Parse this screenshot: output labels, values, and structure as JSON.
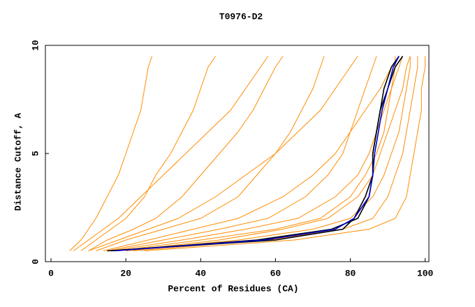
{
  "chart_data": {
    "type": "line",
    "title": "T0976-D2",
    "x_label": "Percent of Residues (CA)",
    "y_label": "Distance Cutoff, A",
    "xlim": [
      -1.5,
      101
    ],
    "ylim": [
      0,
      10
    ],
    "xticks": [
      0,
      20,
      40,
      60,
      80,
      100
    ],
    "yticks": [
      0,
      5,
      10
    ],
    "series": [
      {
        "color": "#ff8c00",
        "x": [
          5,
          8,
          10,
          12,
          15,
          18,
          20,
          22,
          24,
          25,
          26,
          27
        ],
        "values": [
          0.5,
          1,
          1.5,
          2,
          3,
          4,
          5,
          6,
          7,
          8,
          9,
          9.5
        ]
      },
      {
        "color": "#ff8c00",
        "x": [
          8,
          12,
          16,
          20,
          25,
          28,
          32,
          35,
          38,
          40,
          42,
          44
        ],
        "values": [
          0.5,
          1,
          1.5,
          2,
          3,
          4,
          5,
          6,
          7,
          8,
          9,
          9.5
        ]
      },
      {
        "color": "#ff8c00",
        "x": [
          10,
          15,
          22,
          28,
          35,
          40,
          45,
          50,
          54,
          57,
          60,
          62
        ],
        "values": [
          0.5,
          1,
          1.5,
          2,
          3,
          4,
          5,
          6,
          7,
          8,
          9,
          9.5
        ]
      },
      {
        "color": "#ff8c00",
        "x": [
          12,
          20,
          30,
          40,
          50,
          55,
          60,
          64,
          67,
          70,
          72,
          73
        ],
        "values": [
          0.5,
          1,
          1.5,
          2,
          3,
          4,
          5,
          6,
          7,
          8,
          9,
          9.5
        ]
      },
      {
        "color": "#ff8c00",
        "x": [
          15,
          30,
          45,
          58,
          68,
          74,
          78,
          80,
          82,
          84,
          86,
          87
        ],
        "values": [
          0.5,
          1,
          1.5,
          2,
          3,
          4,
          5,
          6,
          7,
          8,
          9,
          9.5
        ]
      },
      {
        "color": "#ff8c00",
        "x": [
          18,
          40,
          60,
          72,
          80,
          84,
          87,
          89,
          90,
          91,
          92,
          92
        ],
        "values": [
          0.5,
          1,
          1.5,
          2,
          3,
          4,
          5,
          6,
          7,
          8,
          9,
          9.5
        ]
      },
      {
        "color": "#ff8c00",
        "x": [
          20,
          50,
          70,
          80,
          86,
          89,
          91,
          93,
          94,
          95,
          96,
          96
        ],
        "values": [
          0.5,
          1,
          1.5,
          2,
          3,
          4,
          5,
          6,
          7,
          8,
          9,
          9.5
        ]
      },
      {
        "color": "#ff8c00",
        "x": [
          22,
          58,
          78,
          86,
          90,
          92,
          94,
          95,
          96,
          97,
          98,
          98
        ],
        "values": [
          0.5,
          1,
          1.5,
          2,
          3,
          4,
          5,
          6,
          7,
          8,
          9,
          9.5
        ]
      },
      {
        "color": "#ff8c00",
        "x": [
          25,
          65,
          85,
          92,
          95,
          96,
          97,
          98,
          99,
          99,
          100,
          100
        ],
        "values": [
          0.5,
          1,
          1.5,
          2,
          3,
          4,
          5,
          6,
          7,
          8,
          9,
          9.5
        ]
      },
      {
        "color": "#ff8c00",
        "x": [
          14,
          26,
          38,
          50,
          62,
          70,
          76,
          80,
          84,
          88,
          91,
          93
        ],
        "values": [
          0.5,
          1,
          1.5,
          2,
          3,
          4,
          5,
          6,
          7,
          8,
          9,
          9.5
        ]
      },
      {
        "color": "#ff8c00",
        "x": [
          10,
          18,
          26,
          34,
          44,
          52,
          60,
          66,
          72,
          76,
          80,
          82
        ],
        "values": [
          0.5,
          1,
          1.5,
          2,
          3,
          4,
          5,
          6,
          7,
          8,
          9,
          9.5
        ]
      },
      {
        "color": "#ff8c00",
        "x": [
          20,
          45,
          62,
          74,
          82,
          86,
          88,
          90,
          92,
          94,
          95,
          96
        ],
        "values": [
          0.5,
          1,
          1.5,
          2,
          3,
          4,
          5,
          6,
          7,
          8,
          9,
          9.5
        ]
      },
      {
        "color": "#ff8c00",
        "x": [
          6,
          10,
          14,
          18,
          24,
          30,
          36,
          42,
          48,
          52,
          56,
          58
        ],
        "values": [
          0.5,
          1,
          1.5,
          2,
          3,
          4,
          5,
          6,
          7,
          8,
          9,
          9.5
        ]
      },
      {
        "color": "#ff8c00",
        "x": [
          16,
          35,
          52,
          66,
          76,
          82,
          85,
          87,
          89,
          91,
          93,
          94
        ],
        "values": [
          0.5,
          1,
          1.5,
          2,
          3,
          4,
          5,
          6,
          7,
          8,
          9,
          9.5
        ]
      },
      {
        "color": "#000000",
        "x": [
          16,
          55,
          75,
          82,
          85,
          86,
          86,
          87,
          88,
          89,
          91,
          93
        ],
        "values": [
          0.5,
          1,
          1.5,
          2,
          3,
          4,
          5,
          6,
          7,
          8,
          9,
          9.5
        ]
      },
      {
        "color": "#000000",
        "x": [
          15,
          60,
          78,
          81,
          84,
          86,
          86,
          87,
          88,
          90,
          92,
          94
        ],
        "values": [
          0.5,
          1,
          1.5,
          2,
          3,
          4,
          5,
          6,
          7,
          8,
          9,
          9.5
        ]
      },
      {
        "color": "#0000cc",
        "x": [
          17,
          57,
          76,
          81,
          85,
          86,
          86.5,
          87.5,
          88.5,
          90,
          91.5,
          93
        ],
        "values": [
          0.5,
          1,
          1.5,
          2,
          3,
          4,
          5,
          6,
          7,
          8,
          9,
          9.5
        ]
      }
    ]
  }
}
